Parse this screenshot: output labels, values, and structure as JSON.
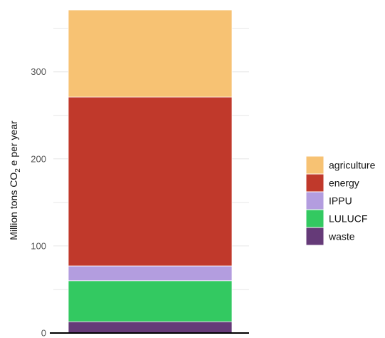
{
  "chart_data": {
    "type": "bar",
    "stacked": true,
    "categories": [
      ""
    ],
    "series": [
      {
        "name": "waste",
        "values": [
          13
        ],
        "color": "#653a78"
      },
      {
        "name": "LULUCF",
        "values": [
          47
        ],
        "color": "#33c961"
      },
      {
        "name": "IPPU",
        "values": [
          17
        ],
        "color": "#b39ddf"
      },
      {
        "name": "energy",
        "values": [
          194
        ],
        "color": "#c0392b"
      },
      {
        "name": "agriculture",
        "values": [
          100
        ],
        "color": "#f7c273"
      }
    ],
    "legend_order": [
      "agriculture",
      "energy",
      "IPPU",
      "LULUCF",
      "waste"
    ],
    "ylabel_main": "Million tons CO",
    "ylabel_sub": "2",
    "ylabel_tail": " e per year",
    "yticks": [
      0,
      100,
      200,
      300
    ],
    "ylim": [
      0,
      371
    ],
    "grid": true,
    "legend_position": "right"
  }
}
